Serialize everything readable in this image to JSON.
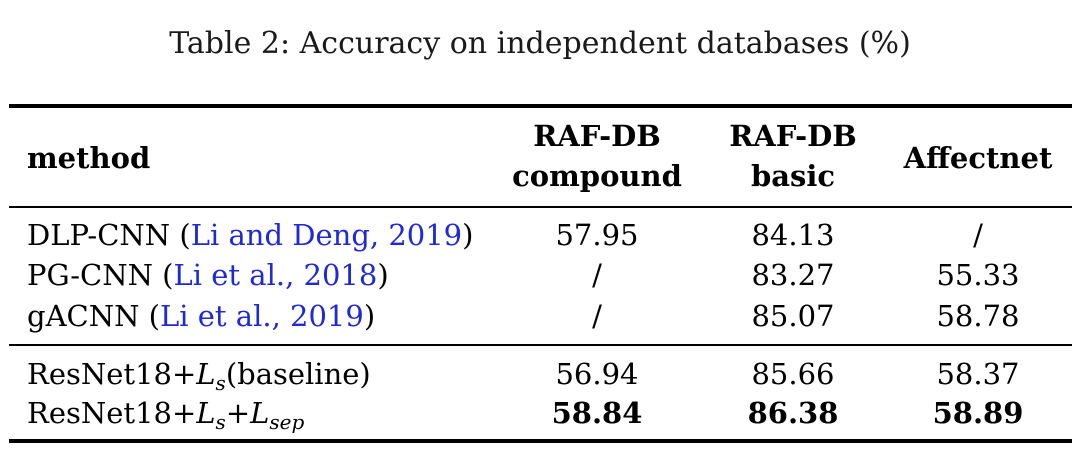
{
  "caption": "Table 2: Accuracy on independent databases (%)",
  "table": {
    "header": {
      "method": "method",
      "col1_line1": "RAF-DB",
      "col1_line2": "compound",
      "col2_line1": "RAF-DB",
      "col2_line2": "basic",
      "col3": "Affectnet"
    },
    "rows": [
      {
        "method": "DLP-CNN",
        "citation": "Li and Deng, 2019",
        "values": [
          "57.95",
          "84.13",
          "/"
        ]
      },
      {
        "method": "PG-CNN",
        "citation": "Li et al., 2018",
        "values": [
          "/",
          "83.27",
          "55.33"
        ]
      },
      {
        "method": "gACNN",
        "citation": "Li et al., 2019",
        "values": [
          "/",
          "85.07",
          "58.78"
        ]
      },
      {
        "method_prefix": "ResNet18+",
        "loss1": "L",
        "loss1_sub": "s",
        "suffix": "(baseline)",
        "values": [
          "56.94",
          "85.66",
          "58.37"
        ]
      },
      {
        "method_prefix": "ResNet18+",
        "loss1": "L",
        "loss1_sub": "s",
        "plus": "+",
        "loss2": "L",
        "loss2_sub": "sep",
        "values": [
          "58.84",
          "86.38",
          "58.89"
        ],
        "bold_values": true
      }
    ]
  },
  "colors": {
    "citation": "#1f2ad6",
    "text": "#000000"
  }
}
